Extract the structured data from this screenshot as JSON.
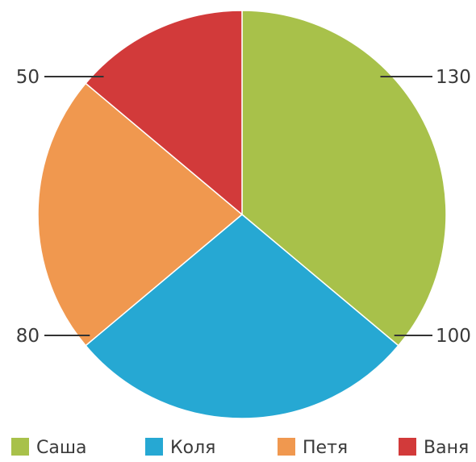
{
  "chart_data": {
    "type": "pie",
    "title": "",
    "slices": [
      {
        "label": "Саша",
        "value": 130,
        "color": "#a8c14a"
      },
      {
        "label": "Коля",
        "value": 100,
        "color": "#26a8d3"
      },
      {
        "label": "Петя",
        "value": 80,
        "color": "#f0984f"
      },
      {
        "label": "Ваня",
        "value": 50,
        "color": "#d23a3a"
      }
    ],
    "start_angle": "12 o'clock",
    "direction": "clockwise",
    "legend_position": "bottom",
    "data_labels": "outside with leader lines"
  }
}
